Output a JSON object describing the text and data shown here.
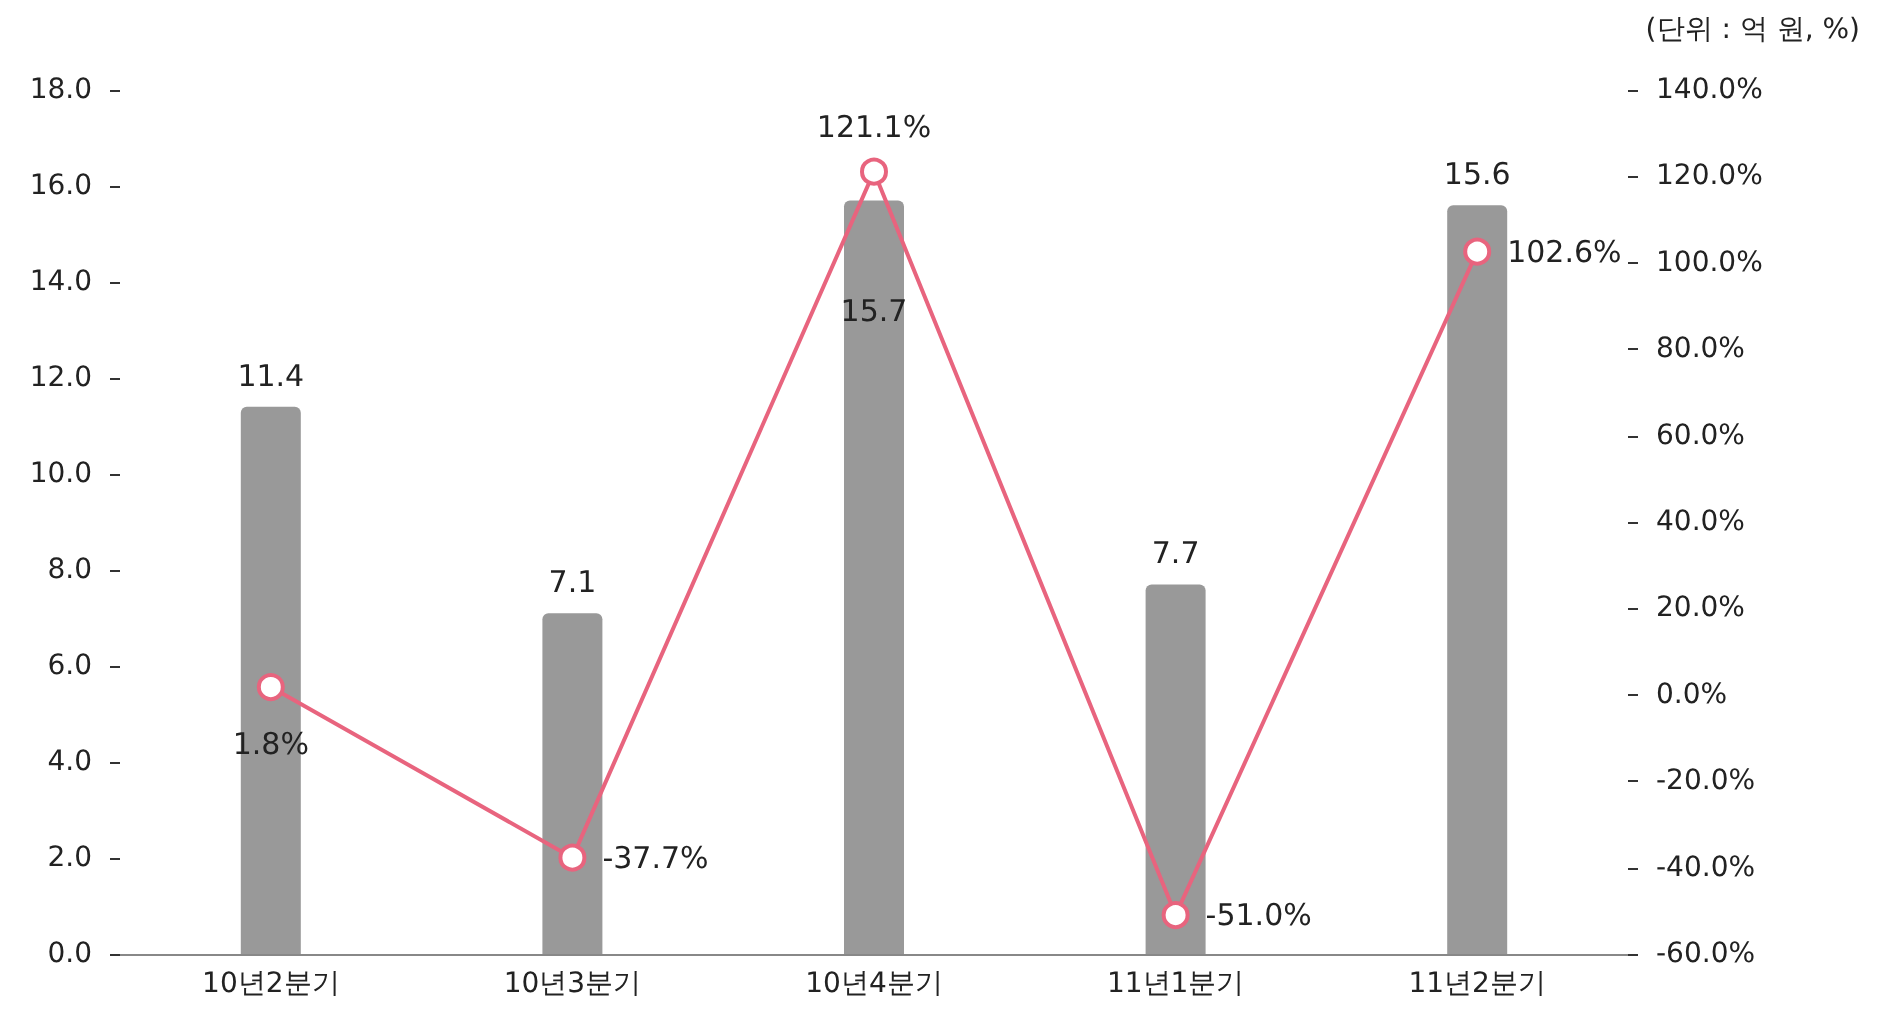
{
  "chart_data": {
    "type": "bar",
    "annotations": [
      "(단위 : 억 원, %)"
    ],
    "categories": [
      "10년2분기",
      "10년3분기",
      "10년4분기",
      "11년1분기",
      "11년2분기"
    ],
    "series": [
      {
        "color": "#999999",
        "values": [
          11.4,
          7.1,
          15.7,
          7.7,
          15.6
        ],
        "value_labels": [
          "11.4",
          "7.1",
          "15.7",
          "7.7",
          "15.6"
        ]
      },
      {
        "type": "line",
        "axis": "y2",
        "color": "#e8647e",
        "marker": "circle",
        "values": [
          1.8,
          -37.7,
          121.1,
          -51.0,
          102.6
        ],
        "value_labels": [
          "1.8%",
          "-37.7%",
          "121.1%",
          "-51.0%",
          "102.6%"
        ]
      }
    ],
    "ylim": [
      0,
      18
    ],
    "yticks": [
      {
        "value": 0,
        "label": "0.0"
      },
      {
        "value": 2,
        "label": "2.0"
      },
      {
        "value": 4,
        "label": "4.0"
      },
      {
        "value": 6,
        "label": "6.0"
      },
      {
        "value": 8,
        "label": "8.0"
      },
      {
        "value": 10,
        "label": "10.0"
      },
      {
        "value": 12,
        "label": "12.0"
      },
      {
        "value": 14,
        "label": "14.0"
      },
      {
        "value": 16,
        "label": "16.0"
      },
      {
        "value": 18,
        "label": "18.0"
      }
    ],
    "y2lim": [
      -60,
      140
    ],
    "y2ticks": [
      {
        "value": -60,
        "label": "-60.0%"
      },
      {
        "value": -40,
        "label": "-40.0%"
      },
      {
        "value": -20,
        "label": "-20.0%"
      },
      {
        "value": 0,
        "label": "0.0%"
      },
      {
        "value": 20,
        "label": "20.0%"
      },
      {
        "value": 40,
        "label": "40.0%"
      },
      {
        "value": 60,
        "label": "60.0%"
      },
      {
        "value": 80,
        "label": "80.0%"
      },
      {
        "value": 100,
        "label": "100.0%"
      },
      {
        "value": 120,
        "label": "120.0%"
      },
      {
        "value": 140,
        "label": "140.0%"
      }
    ],
    "grid": false
  }
}
